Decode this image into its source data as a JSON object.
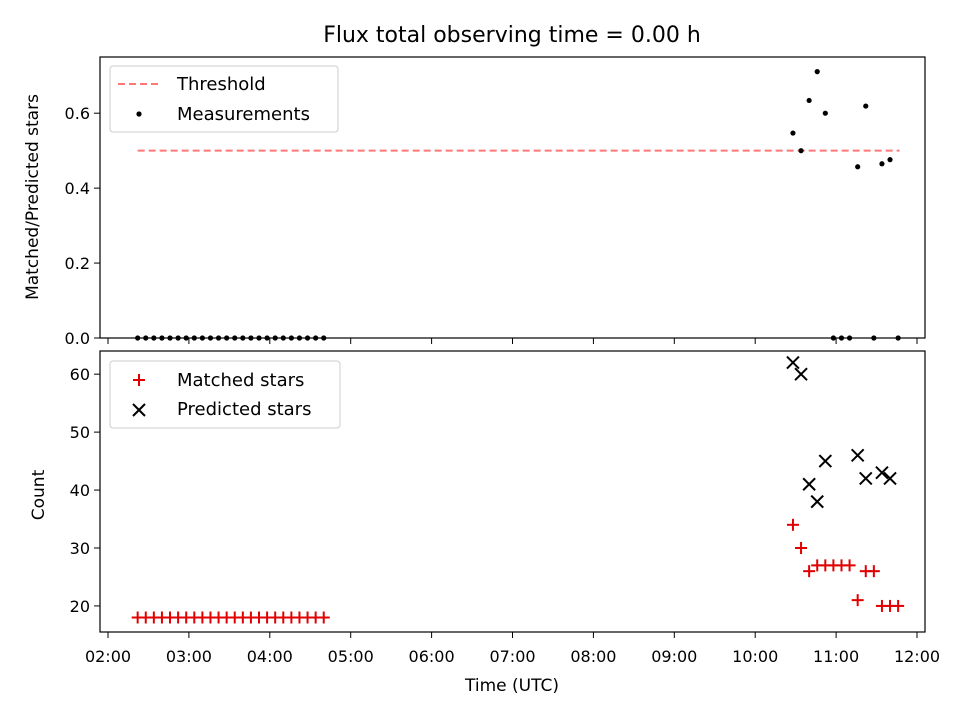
{
  "title": "Flux total observing time = 0.00 h",
  "colors": {
    "threshold": "#ff7777",
    "measurements": "#000000",
    "matched": "#e00000",
    "predicted": "#000000"
  },
  "chart_data": [
    {
      "type": "scatter",
      "ylabel": "Matched/Predicted stars",
      "xlabel": "",
      "xlim": [
        "02:00",
        "12:00"
      ],
      "ylim": [
        0,
        0.75
      ],
      "yticks": [
        0.0,
        0.2,
        0.4,
        0.6
      ],
      "ytick_labels": [
        "0.0",
        "0.2",
        "0.4",
        "0.6"
      ],
      "legend_position": "top-left",
      "series": [
        {
          "name": "Threshold",
          "kind": "dashed-line",
          "x": [
            "02:22",
            "11:47"
          ],
          "y": [
            0.5,
            0.5
          ]
        },
        {
          "name": "Measurements",
          "kind": "dot",
          "x": [
            "02:22",
            "02:28",
            "02:34",
            "02:40",
            "02:46",
            "02:52",
            "02:58",
            "03:04",
            "03:10",
            "03:16",
            "03:22",
            "03:28",
            "03:34",
            "03:40",
            "03:46",
            "03:52",
            "03:58",
            "04:04",
            "04:10",
            "04:16",
            "04:22",
            "04:28",
            "04:34",
            "04:40",
            "10:28",
            "10:34",
            "10:40",
            "10:46",
            "10:52",
            "10:58",
            "11:04",
            "11:10",
            "11:16",
            "11:22",
            "11:28",
            "11:34",
            "11:40",
            "11:46"
          ],
          "y": [
            0,
            0,
            0,
            0,
            0,
            0,
            0,
            0,
            0,
            0,
            0,
            0,
            0,
            0,
            0,
            0,
            0,
            0,
            0,
            0,
            0,
            0,
            0,
            0,
            0.547,
            0.5,
            0.634,
            0.711,
            0.6,
            0,
            0,
            0,
            0.457,
            0.619,
            0,
            0.465,
            0.476,
            0
          ]
        }
      ]
    },
    {
      "type": "scatter",
      "ylabel": "Count",
      "xlabel": "Time (UTC)",
      "xlim": [
        "02:00",
        "12:00"
      ],
      "ylim": [
        15.5,
        64
      ],
      "yticks": [
        20,
        30,
        40,
        50,
        60
      ],
      "ytick_labels": [
        "20",
        "30",
        "40",
        "50",
        "60"
      ],
      "xticks": [
        "02:00",
        "03:00",
        "04:00",
        "05:00",
        "06:00",
        "07:00",
        "08:00",
        "09:00",
        "10:00",
        "11:00",
        "12:00"
      ],
      "xtick_labels": [
        "02:00",
        "03:00",
        "04:00",
        "05:00",
        "06:00",
        "07:00",
        "08:00",
        "09:00",
        "10:00",
        "11:00",
        "12:00"
      ],
      "legend_position": "top-left",
      "series": [
        {
          "name": "Matched stars",
          "kind": "plus",
          "x": [
            "02:22",
            "02:28",
            "02:34",
            "02:40",
            "02:46",
            "02:52",
            "02:58",
            "03:04",
            "03:10",
            "03:16",
            "03:22",
            "03:28",
            "03:34",
            "03:40",
            "03:46",
            "03:52",
            "03:58",
            "04:04",
            "04:10",
            "04:16",
            "04:22",
            "04:28",
            "04:34",
            "04:40",
            "10:28",
            "10:34",
            "10:40",
            "10:46",
            "10:52",
            "10:58",
            "11:04",
            "11:10",
            "11:16",
            "11:22",
            "11:28",
            "11:34",
            "11:40",
            "11:46"
          ],
          "y": [
            18,
            18,
            18,
            18,
            18,
            18,
            18,
            18,
            18,
            18,
            18,
            18,
            18,
            18,
            18,
            18,
            18,
            18,
            18,
            18,
            18,
            18,
            18,
            18,
            34,
            30,
            26,
            27,
            27,
            27,
            27,
            27,
            21,
            26,
            26,
            20,
            20,
            20
          ]
        },
        {
          "name": "Predicted stars",
          "kind": "x",
          "x": [
            "10:28",
            "10:34",
            "10:40",
            "10:46",
            "10:52",
            "11:16",
            "11:22",
            "11:34",
            "11:40"
          ],
          "y": [
            62,
            60,
            41,
            38,
            45,
            46,
            42,
            43,
            42
          ]
        }
      ]
    }
  ]
}
